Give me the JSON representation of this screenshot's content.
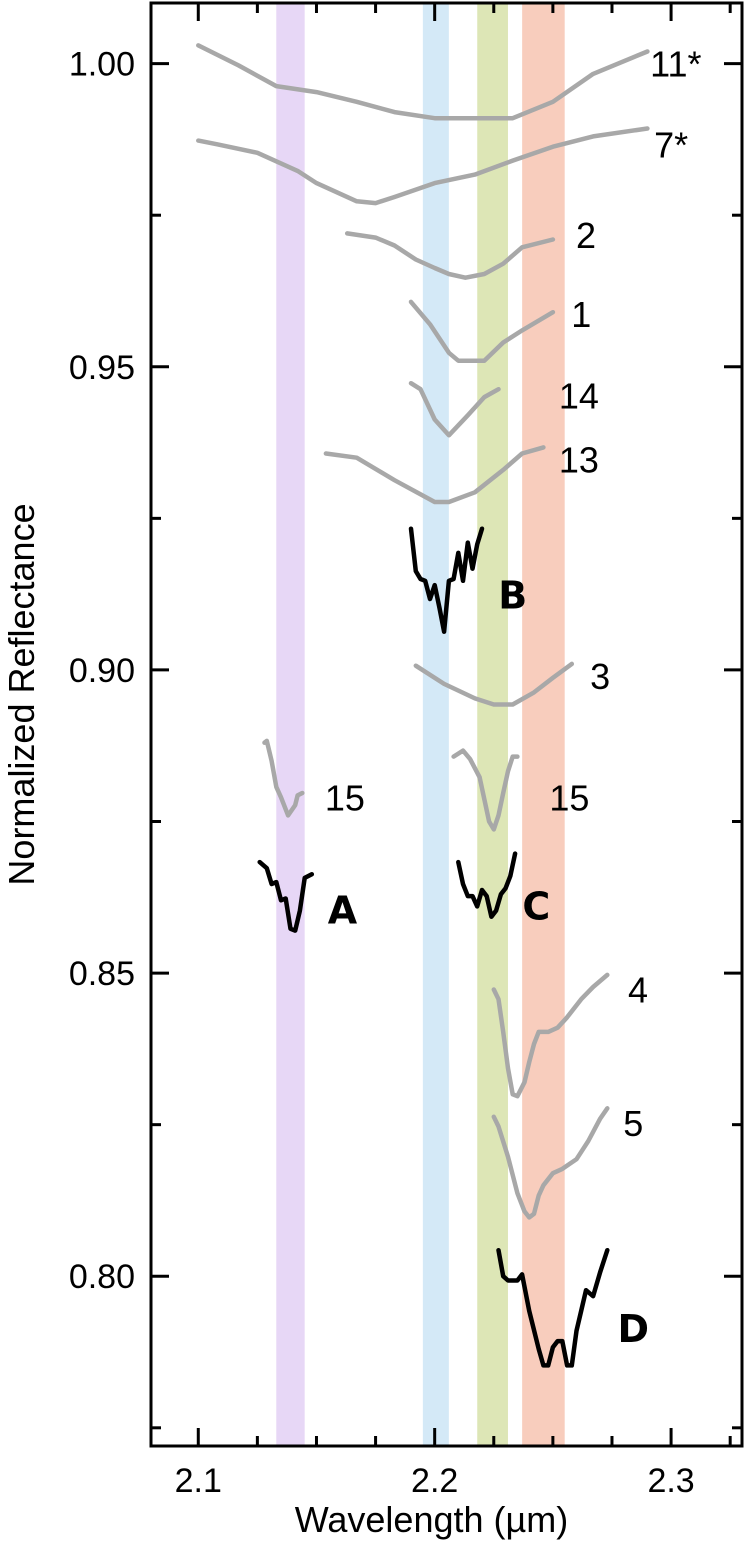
{
  "chart_data": {
    "type": "line",
    "title": "",
    "xlabel": "Wavelength (µm)",
    "ylabel": "Normalized Reflectance",
    "xlim": [
      2.08,
      2.33
    ],
    "ylim": [
      0.772,
      1.01
    ],
    "x_ticks": [
      {
        "value": 2.1,
        "label": "2.1"
      },
      {
        "value": 2.2,
        "label": "2.2"
      },
      {
        "value": 2.3,
        "label": "2.3"
      }
    ],
    "y_ticks": [
      {
        "value": 0.8,
        "label": "0.80"
      },
      {
        "value": 0.85,
        "label": "0.85"
      },
      {
        "value": 0.9,
        "label": "0.90"
      },
      {
        "value": 0.95,
        "label": "0.95"
      },
      {
        "value": 1.0,
        "label": "1.00"
      }
    ],
    "bands": [
      {
        "x0": 2.133,
        "x1": 2.145,
        "color": "#e7d7f6"
      },
      {
        "x0": 2.195,
        "x1": 2.206,
        "color": "#d4e9f7"
      },
      {
        "x0": 2.218,
        "x1": 2.231,
        "color": "#dde6b6"
      },
      {
        "x0": 2.237,
        "x1": 2.255,
        "color": "#f8cdbd"
      }
    ],
    "series": [
      {
        "name": "11*",
        "color": "#a8a8a8",
        "x": [
          2.1,
          2.117,
          2.133,
          2.15,
          2.167,
          2.183,
          2.2,
          2.217,
          2.233,
          2.25,
          2.267,
          2.29
        ],
        "y": [
          1.003,
          0.9997,
          0.9963,
          0.9953,
          0.9937,
          0.992,
          0.991,
          0.991,
          0.991,
          0.9937,
          0.9983,
          1.002
        ],
        "label": {
          "text": "11*",
          "x": 2.302,
          "y": 1.0
        },
        "bold": false
      },
      {
        "name": "7*",
        "color": "#a8a8a8",
        "x": [
          2.1,
          2.108,
          2.125,
          2.142,
          2.15,
          2.167,
          2.175,
          2.183,
          2.2,
          2.217,
          2.233,
          2.25,
          2.267,
          2.29
        ],
        "y": [
          0.9873,
          0.9867,
          0.9853,
          0.9823,
          0.9803,
          0.9773,
          0.977,
          0.978,
          0.9803,
          0.9817,
          0.984,
          0.9863,
          0.988,
          0.9893
        ],
        "label": {
          "text": "7*",
          "x": 2.3,
          "y": 0.9867
        },
        "bold": false
      },
      {
        "name": "2",
        "color": "#a8a8a8",
        "x": [
          2.163,
          2.175,
          2.183,
          2.192,
          2.2,
          2.206,
          2.213,
          2.221,
          2.229,
          2.237,
          2.25
        ],
        "y": [
          0.972,
          0.9713,
          0.97,
          0.9677,
          0.9663,
          0.9653,
          0.9647,
          0.9653,
          0.967,
          0.9697,
          0.971
        ],
        "label": {
          "text": "2",
          "x": 2.264,
          "y": 0.9717
        },
        "bold": false
      },
      {
        "name": "1",
        "color": "#a8a8a8",
        "x": [
          2.19,
          2.198,
          2.206,
          2.21,
          2.221,
          2.229,
          2.237,
          2.25
        ],
        "y": [
          0.9607,
          0.957,
          0.9523,
          0.951,
          0.951,
          0.954,
          0.956,
          0.959
        ],
        "label": {
          "text": "1",
          "x": 2.262,
          "y": 0.9587
        },
        "bold": false
      },
      {
        "name": "14",
        "color": "#a8a8a8",
        "x": [
          2.19,
          2.194,
          2.2,
          2.206,
          2.214,
          2.221,
          2.227
        ],
        "y": [
          0.9473,
          0.9463,
          0.9413,
          0.9387,
          0.942,
          0.945,
          0.9463
        ],
        "label": {
          "text": "14",
          "x": 2.261,
          "y": 0.9453
        },
        "bold": false
      },
      {
        "name": "13",
        "color": "#a8a8a8",
        "x": [
          2.154,
          2.167,
          2.183,
          2.2,
          2.206,
          2.217,
          2.229,
          2.237,
          2.246
        ],
        "y": [
          0.9357,
          0.935,
          0.9313,
          0.9277,
          0.9277,
          0.9293,
          0.933,
          0.9357,
          0.9367
        ],
        "label": {
          "text": "13",
          "x": 2.261,
          "y": 0.9347
        },
        "bold": false
      },
      {
        "name": "B",
        "color": "#000000",
        "x": [
          2.19,
          2.192,
          2.194,
          2.196,
          2.198,
          2.2,
          2.202,
          2.204,
          2.206,
          2.208,
          2.21,
          2.212,
          2.214,
          2.216,
          2.218,
          2.22
        ],
        "y": [
          0.9233,
          0.9163,
          0.915,
          0.9147,
          0.9117,
          0.914,
          0.9103,
          0.9063,
          0.9147,
          0.915,
          0.9193,
          0.9147,
          0.921,
          0.9167,
          0.9207,
          0.9233
        ],
        "label": {
          "text": "B",
          "x": 2.233,
          "y": 0.9123
        },
        "bold": true
      },
      {
        "name": "3",
        "color": "#a8a8a8",
        "x": [
          2.192,
          2.204,
          2.217,
          2.225,
          2.233,
          2.242,
          2.25,
          2.258
        ],
        "y": [
          0.9007,
          0.8977,
          0.8953,
          0.8943,
          0.8943,
          0.8963,
          0.8987,
          0.901
        ],
        "label": {
          "text": "3",
          "x": 2.27,
          "y": 0.899
        },
        "bold": false
      },
      {
        "name": "15",
        "color": "#a8a8a8",
        "x": [
          2.128,
          2.129,
          2.131,
          2.133,
          2.135,
          2.138,
          2.141,
          2.142,
          2.144
        ],
        "y": [
          0.888,
          0.8883,
          0.885,
          0.8807,
          0.879,
          0.876,
          0.8777,
          0.8793,
          0.8797
        ],
        "label": {
          "text": "15",
          "x": 2.162,
          "y": 0.879
        },
        "bold": false
      },
      {
        "name": "15",
        "color": "#a8a8a8",
        "x": [
          2.208,
          2.212,
          2.215,
          2.219,
          2.221,
          2.223,
          2.225,
          2.227,
          2.229,
          2.231,
          2.233,
          2.235
        ],
        "y": [
          0.8857,
          0.8867,
          0.8853,
          0.8823,
          0.8787,
          0.875,
          0.8737,
          0.876,
          0.8797,
          0.8833,
          0.8857,
          0.8857
        ],
        "label": {
          "text": "15",
          "x": 2.257,
          "y": 0.879
        },
        "bold": false
      },
      {
        "name": "A",
        "color": "#000000",
        "x": [
          2.126,
          2.129,
          2.131,
          2.133,
          2.135,
          2.137,
          2.139,
          2.141,
          2.143,
          2.145,
          2.148
        ],
        "y": [
          0.8683,
          0.8673,
          0.8647,
          0.865,
          0.862,
          0.8623,
          0.8573,
          0.857,
          0.8603,
          0.8657,
          0.8663
        ],
        "label": {
          "text": "A",
          "x": 2.161,
          "y": 0.8603
        },
        "bold": true
      },
      {
        "name": "C",
        "color": "#000000",
        "x": [
          2.21,
          2.212,
          2.214,
          2.216,
          2.218,
          2.22,
          2.222,
          2.224,
          2.226,
          2.228,
          2.23,
          2.232,
          2.234
        ],
        "y": [
          0.8683,
          0.8647,
          0.8627,
          0.8627,
          0.861,
          0.8637,
          0.8627,
          0.8593,
          0.8603,
          0.863,
          0.864,
          0.866,
          0.8697
        ],
        "label": {
          "text": "C",
          "x": 2.243,
          "y": 0.861
        },
        "bold": true
      },
      {
        "name": "4",
        "color": "#a8a8a8",
        "x": [
          2.225,
          2.227,
          2.229,
          2.231,
          2.233,
          2.235,
          2.238,
          2.24,
          2.242,
          2.244,
          2.248,
          2.252,
          2.256,
          2.262,
          2.267,
          2.273
        ],
        "y": [
          0.8473,
          0.8457,
          0.8403,
          0.8343,
          0.83,
          0.8297,
          0.832,
          0.8353,
          0.8383,
          0.8403,
          0.8403,
          0.841,
          0.8427,
          0.8457,
          0.8477,
          0.8497
        ],
        "label": {
          "text": "4",
          "x": 2.286,
          "y": 0.8473
        },
        "bold": false
      },
      {
        "name": "5",
        "color": "#a8a8a8",
        "x": [
          2.225,
          2.227,
          2.231,
          2.235,
          2.238,
          2.24,
          2.242,
          2.244,
          2.246,
          2.25,
          2.254,
          2.26,
          2.265,
          2.27,
          2.273
        ],
        "y": [
          0.8263,
          0.8247,
          0.8197,
          0.8137,
          0.8107,
          0.8097,
          0.8103,
          0.8133,
          0.815,
          0.817,
          0.8177,
          0.8193,
          0.8223,
          0.826,
          0.8277
        ],
        "label": {
          "text": "5",
          "x": 2.284,
          "y": 0.8253
        },
        "bold": false
      },
      {
        "name": "D",
        "color": "#000000",
        "x": [
          2.227,
          2.229,
          2.231,
          2.235,
          2.237,
          2.24,
          2.244,
          2.246,
          2.248,
          2.25,
          2.252,
          2.254,
          2.256,
          2.258,
          2.26,
          2.262,
          2.264,
          2.267,
          2.27,
          2.273
        ],
        "y": [
          0.8043,
          0.8,
          0.7993,
          0.7993,
          0.8003,
          0.7943,
          0.788,
          0.7853,
          0.7853,
          0.7883,
          0.7893,
          0.7893,
          0.7853,
          0.7853,
          0.791,
          0.7943,
          0.7977,
          0.7967,
          0.8007,
          0.8043
        ],
        "label": {
          "text": "D",
          "x": 2.284,
          "y": 0.7913
        },
        "bold": true
      }
    ]
  }
}
